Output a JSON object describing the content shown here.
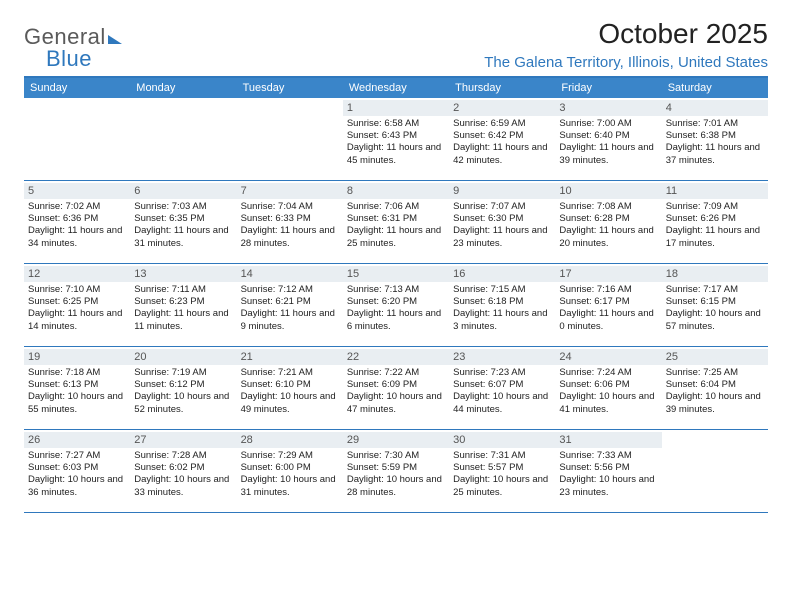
{
  "logo": {
    "top": "General",
    "bottom": "Blue"
  },
  "title": "October 2025",
  "location": "The Galena Territory, Illinois, United States",
  "colors": {
    "header_bg": "#3a85c9",
    "border": "#2f78bd",
    "daynum_bg": "#e9eef2",
    "text": "#222222",
    "logo_blue": "#2f78bd",
    "logo_gray": "#5a5a5a"
  },
  "weekdays": [
    "Sunday",
    "Monday",
    "Tuesday",
    "Wednesday",
    "Thursday",
    "Friday",
    "Saturday"
  ],
  "weeks": [
    [
      null,
      null,
      null,
      {
        "n": "1",
        "sr": "6:58 AM",
        "ss": "6:43 PM",
        "dh": "11",
        "dm": "45"
      },
      {
        "n": "2",
        "sr": "6:59 AM",
        "ss": "6:42 PM",
        "dh": "11",
        "dm": "42"
      },
      {
        "n": "3",
        "sr": "7:00 AM",
        "ss": "6:40 PM",
        "dh": "11",
        "dm": "39"
      },
      {
        "n": "4",
        "sr": "7:01 AM",
        "ss": "6:38 PM",
        "dh": "11",
        "dm": "37"
      }
    ],
    [
      {
        "n": "5",
        "sr": "7:02 AM",
        "ss": "6:36 PM",
        "dh": "11",
        "dm": "34"
      },
      {
        "n": "6",
        "sr": "7:03 AM",
        "ss": "6:35 PM",
        "dh": "11",
        "dm": "31"
      },
      {
        "n": "7",
        "sr": "7:04 AM",
        "ss": "6:33 PM",
        "dh": "11",
        "dm": "28"
      },
      {
        "n": "8",
        "sr": "7:06 AM",
        "ss": "6:31 PM",
        "dh": "11",
        "dm": "25"
      },
      {
        "n": "9",
        "sr": "7:07 AM",
        "ss": "6:30 PM",
        "dh": "11",
        "dm": "23"
      },
      {
        "n": "10",
        "sr": "7:08 AM",
        "ss": "6:28 PM",
        "dh": "11",
        "dm": "20"
      },
      {
        "n": "11",
        "sr": "7:09 AM",
        "ss": "6:26 PM",
        "dh": "11",
        "dm": "17"
      }
    ],
    [
      {
        "n": "12",
        "sr": "7:10 AM",
        "ss": "6:25 PM",
        "dh": "11",
        "dm": "14"
      },
      {
        "n": "13",
        "sr": "7:11 AM",
        "ss": "6:23 PM",
        "dh": "11",
        "dm": "11"
      },
      {
        "n": "14",
        "sr": "7:12 AM",
        "ss": "6:21 PM",
        "dh": "11",
        "dm": "9"
      },
      {
        "n": "15",
        "sr": "7:13 AM",
        "ss": "6:20 PM",
        "dh": "11",
        "dm": "6"
      },
      {
        "n": "16",
        "sr": "7:15 AM",
        "ss": "6:18 PM",
        "dh": "11",
        "dm": "3"
      },
      {
        "n": "17",
        "sr": "7:16 AM",
        "ss": "6:17 PM",
        "dh": "11",
        "dm": "0"
      },
      {
        "n": "18",
        "sr": "7:17 AM",
        "ss": "6:15 PM",
        "dh": "10",
        "dm": "57"
      }
    ],
    [
      {
        "n": "19",
        "sr": "7:18 AM",
        "ss": "6:13 PM",
        "dh": "10",
        "dm": "55"
      },
      {
        "n": "20",
        "sr": "7:19 AM",
        "ss": "6:12 PM",
        "dh": "10",
        "dm": "52"
      },
      {
        "n": "21",
        "sr": "7:21 AM",
        "ss": "6:10 PM",
        "dh": "10",
        "dm": "49"
      },
      {
        "n": "22",
        "sr": "7:22 AM",
        "ss": "6:09 PM",
        "dh": "10",
        "dm": "47"
      },
      {
        "n": "23",
        "sr": "7:23 AM",
        "ss": "6:07 PM",
        "dh": "10",
        "dm": "44"
      },
      {
        "n": "24",
        "sr": "7:24 AM",
        "ss": "6:06 PM",
        "dh": "10",
        "dm": "41"
      },
      {
        "n": "25",
        "sr": "7:25 AM",
        "ss": "6:04 PM",
        "dh": "10",
        "dm": "39"
      }
    ],
    [
      {
        "n": "26",
        "sr": "7:27 AM",
        "ss": "6:03 PM",
        "dh": "10",
        "dm": "36"
      },
      {
        "n": "27",
        "sr": "7:28 AM",
        "ss": "6:02 PM",
        "dh": "10",
        "dm": "33"
      },
      {
        "n": "28",
        "sr": "7:29 AM",
        "ss": "6:00 PM",
        "dh": "10",
        "dm": "31"
      },
      {
        "n": "29",
        "sr": "7:30 AM",
        "ss": "5:59 PM",
        "dh": "10",
        "dm": "28"
      },
      {
        "n": "30",
        "sr": "7:31 AM",
        "ss": "5:57 PM",
        "dh": "10",
        "dm": "25"
      },
      {
        "n": "31",
        "sr": "7:33 AM",
        "ss": "5:56 PM",
        "dh": "10",
        "dm": "23"
      },
      null
    ]
  ],
  "labels": {
    "sunrise": "Sunrise:",
    "sunset": "Sunset:",
    "daylight_prefix": "Daylight:",
    "hours_word": "hours",
    "and_word": "and",
    "minutes_word": "minutes."
  }
}
